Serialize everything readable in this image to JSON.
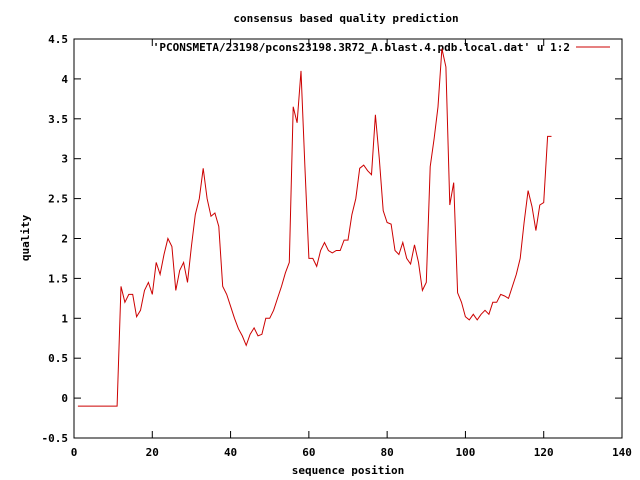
{
  "chart_data": {
    "type": "line",
    "title": "consensus based quality prediction",
    "xlabel": "sequence position",
    "ylabel": "quality",
    "xlim": [
      0,
      140
    ],
    "ylim": [
      -0.5,
      4.5
    ],
    "xticks": [
      "0",
      "20",
      "40",
      "60",
      "80",
      "100",
      "120",
      "140"
    ],
    "yticks": [
      "-0.5",
      "0",
      "0.5",
      "1",
      "1.5",
      "2",
      "2.5",
      "3",
      "3.5",
      "4",
      "4.5"
    ],
    "grid": false,
    "legend_position": "top-right",
    "series": [
      {
        "name": "'PCONSMETA/23198/pcons23198.3R72_A.blast.4.pdb.local.dat' u 1:2",
        "color": "#cc0000",
        "x": [
          1,
          2,
          3,
          4,
          5,
          6,
          7,
          8,
          9,
          10,
          11,
          12,
          13,
          14,
          15,
          16,
          17,
          18,
          19,
          20,
          21,
          22,
          23,
          24,
          25,
          26,
          27,
          28,
          29,
          30,
          31,
          32,
          33,
          34,
          35,
          36,
          37,
          38,
          39,
          40,
          41,
          42,
          43,
          44,
          45,
          46,
          47,
          48,
          49,
          50,
          51,
          52,
          53,
          54,
          55,
          56,
          57,
          58,
          59,
          60,
          61,
          62,
          63,
          64,
          65,
          66,
          67,
          68,
          69,
          70,
          71,
          72,
          73,
          74,
          75,
          76,
          77,
          78,
          79,
          80,
          81,
          82,
          83,
          84,
          85,
          86,
          87,
          88,
          89,
          90,
          91,
          92,
          93,
          94,
          95,
          96,
          97,
          98,
          99,
          100,
          101,
          102,
          103,
          104,
          105,
          106,
          107,
          108,
          109,
          110,
          111,
          112,
          113,
          114,
          115,
          116,
          117,
          118,
          119,
          120,
          121,
          122
        ],
        "y": [
          -0.1,
          -0.1,
          -0.1,
          -0.1,
          -0.1,
          -0.1,
          -0.1,
          -0.1,
          -0.1,
          -0.1,
          -0.1,
          1.4,
          1.2,
          1.3,
          1.3,
          1.02,
          1.1,
          1.35,
          1.45,
          1.3,
          1.7,
          1.55,
          1.8,
          2.0,
          1.9,
          1.35,
          1.6,
          1.7,
          1.45,
          1.9,
          2.3,
          2.5,
          2.88,
          2.5,
          2.28,
          2.32,
          2.15,
          1.4,
          1.3,
          1.15,
          1.0,
          0.87,
          0.78,
          0.66,
          0.8,
          0.88,
          0.78,
          0.8,
          1.0,
          1.0,
          1.1,
          1.25,
          1.4,
          1.57,
          1.7,
          3.65,
          3.45,
          4.1,
          2.9,
          1.75,
          1.75,
          1.65,
          1.85,
          1.95,
          1.85,
          1.82,
          1.85,
          1.85,
          1.98,
          1.98,
          2.3,
          2.5,
          2.88,
          2.92,
          2.85,
          2.8,
          3.55,
          3.0,
          2.35,
          2.2,
          2.18,
          1.85,
          1.8,
          1.95,
          1.75,
          1.68,
          1.92,
          1.7,
          1.35,
          1.45,
          2.9,
          3.25,
          3.65,
          4.38,
          4.15,
          2.42,
          2.7,
          1.32,
          1.2,
          1.02,
          0.98,
          1.05,
          0.98,
          1.05,
          1.1,
          1.05,
          1.2,
          1.2,
          1.3,
          1.28,
          1.25,
          1.4,
          1.55,
          1.75,
          2.2,
          2.6,
          2.4,
          2.1,
          2.42,
          2.45,
          3.28,
          3.28
        ]
      }
    ]
  }
}
